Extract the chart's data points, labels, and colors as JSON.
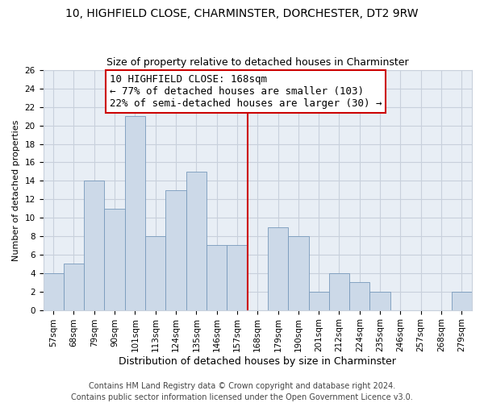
{
  "title": "10, HIGHFIELD CLOSE, CHARMINSTER, DORCHESTER, DT2 9RW",
  "subtitle": "Size of property relative to detached houses in Charminster",
  "xlabel": "Distribution of detached houses by size in Charminster",
  "ylabel": "Number of detached properties",
  "bin_labels": [
    "57sqm",
    "68sqm",
    "79sqm",
    "90sqm",
    "101sqm",
    "113sqm",
    "124sqm",
    "135sqm",
    "146sqm",
    "157sqm",
    "168sqm",
    "179sqm",
    "190sqm",
    "201sqm",
    "212sqm",
    "224sqm",
    "235sqm",
    "246sqm",
    "257sqm",
    "268sqm",
    "279sqm"
  ],
  "bar_heights": [
    4,
    5,
    14,
    11,
    21,
    8,
    13,
    15,
    7,
    7,
    0,
    9,
    8,
    2,
    4,
    3,
    2,
    0,
    0,
    0,
    2
  ],
  "bar_color": "#ccd9e8",
  "bar_edge_color": "#7799bb",
  "grid_color": "#c8d0dc",
  "plot_bg_color": "#e8eef5",
  "vline_color": "#cc0000",
  "annotation_title": "10 HIGHFIELD CLOSE: 168sqm",
  "annotation_line1": "← 77% of detached houses are smaller (103)",
  "annotation_line2": "22% of semi-detached houses are larger (30) →",
  "annotation_box_color": "#ffffff",
  "annotation_box_edge": "#cc0000",
  "footer_line1": "Contains HM Land Registry data © Crown copyright and database right 2024.",
  "footer_line2": "Contains public sector information licensed under the Open Government Licence v3.0.",
  "ylim": [
    0,
    26
  ],
  "yticks": [
    0,
    2,
    4,
    6,
    8,
    10,
    12,
    14,
    16,
    18,
    20,
    22,
    24,
    26
  ],
  "background_color": "#ffffff",
  "title_fontsize": 10,
  "subtitle_fontsize": 9,
  "xlabel_fontsize": 9,
  "ylabel_fontsize": 8,
  "tick_fontsize": 7.5,
  "annotation_title_fontsize": 9,
  "annotation_body_fontsize": 8.5,
  "footer_fontsize": 7
}
